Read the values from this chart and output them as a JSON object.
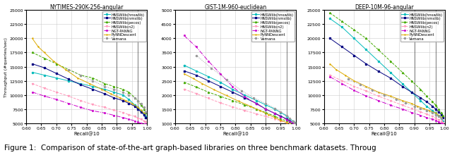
{
  "plots": [
    {
      "title": "NYTIMES-290K-256-angular",
      "ylabel": "Throughput (#queries/sec)",
      "xlabel": "Recall@10",
      "xlim": [
        0.6,
        1.0
      ],
      "ylim": [
        5000,
        25000
      ],
      "vlines": [
        0.9,
        0.97
      ]
    },
    {
      "title": "GIST-1M-960-euclidean",
      "ylabel": "Throughput (#queries/sec)",
      "xlabel": "Recall@10",
      "xlim": [
        0.6,
        1.0
      ],
      "ylim": [
        1000,
        5000
      ],
      "vlines": [
        0.9,
        0.97
      ]
    },
    {
      "title": "DEEP-10M-96-angular",
      "ylabel": "Throughput (#queries/sec)",
      "xlabel": "Recall@10",
      "xlim": [
        0.6,
        1.0
      ],
      "ylim": [
        5000,
        25000
      ],
      "vlines": [
        0.9,
        0.97
      ]
    }
  ],
  "algorithms": [
    {
      "name": "HNSWlib(hnswlib)",
      "color": "#00BBBB",
      "linestyle": "-",
      "marker": "o",
      "markersize": 1.5,
      "linewidth": 0.7
    },
    {
      "name": "HNSWlib(nmslib)",
      "color": "#000080",
      "linestyle": "-",
      "marker": "s",
      "markersize": 1.5,
      "linewidth": 0.7
    },
    {
      "name": "HNSWlib(pecos)",
      "color": "#44AA00",
      "linestyle": "--",
      "marker": "^",
      "markersize": 1.5,
      "linewidth": 0.7
    },
    {
      "name": "HNSWlib(n2)",
      "color": "#FF99BB",
      "linestyle": "--",
      "marker": "v",
      "markersize": 1.5,
      "linewidth": 0.7
    },
    {
      "name": "NGT-PANNG",
      "color": "#CC00CC",
      "linestyle": "-.",
      "marker": "x",
      "markersize": 1.5,
      "linewidth": 0.7
    },
    {
      "name": "PyNNDescent",
      "color": "#DDAA00",
      "linestyle": "-",
      "marker": "+",
      "markersize": 1.5,
      "linewidth": 0.7
    },
    {
      "name": "Vamana",
      "color": "#999999",
      "linestyle": ":",
      "marker": "o",
      "markersize": 1.5,
      "linewidth": 0.7
    }
  ],
  "caption": "Figure 1:  Comparison of state-of-the-art graph-based libraries on three benchmark datasets. Throug",
  "caption_fontsize": 7.5,
  "figsize": [
    6.4,
    2.28
  ],
  "dpi": 100
}
